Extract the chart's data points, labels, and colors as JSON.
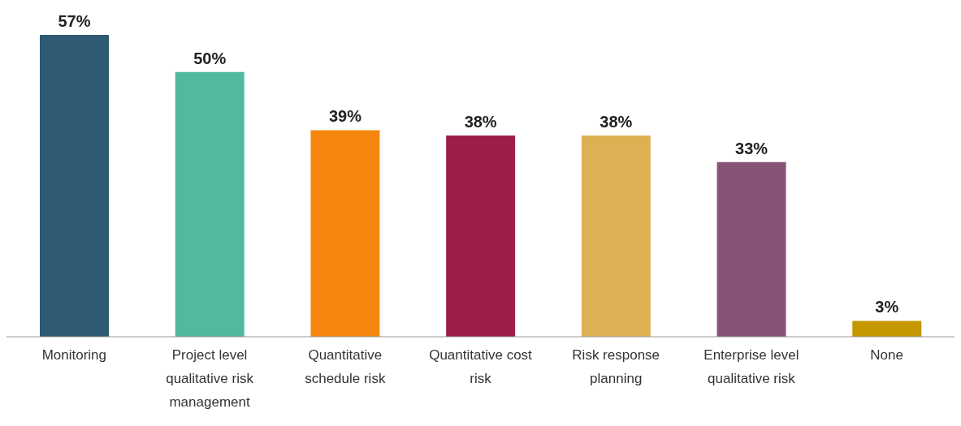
{
  "chart_data": {
    "type": "bar",
    "categories": [
      "Monitoring",
      "Project level qualitative risk management",
      "Quantitative schedule risk",
      "Quantitative cost risk",
      "Risk response planning",
      "Enterprise level qualitative risk",
      "None"
    ],
    "values": [
      57,
      50,
      39,
      38,
      38,
      33,
      3
    ],
    "colors": [
      "#2e5a73",
      "#52b8a0",
      "#f5870f",
      "#9c1f4a",
      "#dbb153",
      "#875478",
      "#c49600"
    ],
    "value_labels": [
      "57%",
      "50%",
      "39%",
      "38%",
      "38%",
      "33%",
      "3%"
    ],
    "grid": false,
    "legend": false
  }
}
